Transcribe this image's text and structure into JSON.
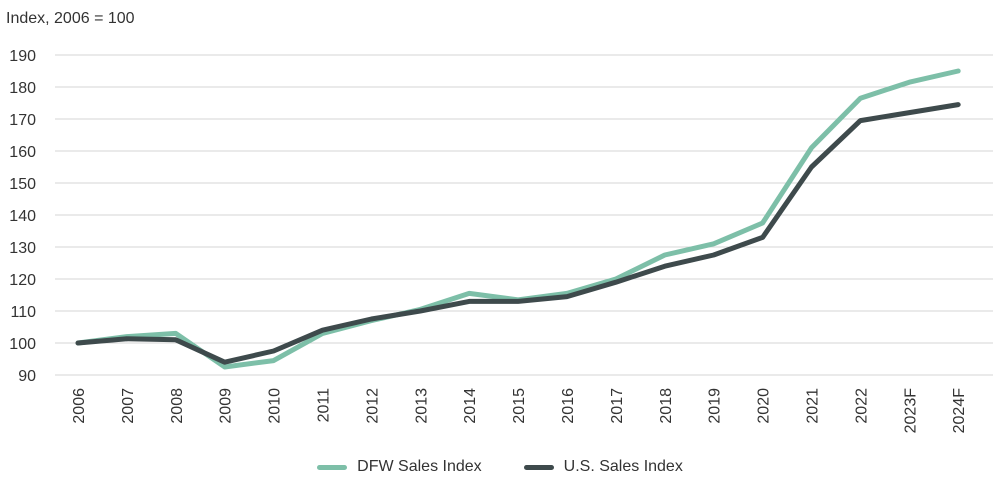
{
  "chart_data": {
    "type": "line",
    "ylabel": "Index, 2006 = 100",
    "ylim": [
      90,
      190
    ],
    "yticks": [
      90,
      100,
      110,
      120,
      130,
      140,
      150,
      160,
      170,
      180,
      190
    ],
    "grid": true,
    "categories": [
      "2006",
      "2007",
      "2008",
      "2009",
      "2010",
      "2011",
      "2012",
      "2013",
      "2014",
      "2015",
      "2016",
      "2017",
      "2018",
      "2019",
      "2020",
      "2021",
      "2022",
      "2023F",
      "2024F"
    ],
    "series": [
      {
        "name": "DFW Sales Index",
        "color": "#7dbfa8",
        "values": [
          100,
          102,
          103,
          92.5,
          94.5,
          103,
          107,
          110.5,
          115.5,
          113.5,
          115.5,
          120,
          127.5,
          131,
          137.5,
          161,
          176.5,
          181.5,
          185
        ]
      },
      {
        "name": "U.S. Sales Index",
        "color": "#3e4a4c",
        "values": [
          100,
          101.3,
          101,
          94,
          97.5,
          104,
          107.5,
          110,
          113,
          113,
          114.5,
          119,
          124,
          127.5,
          133,
          155,
          169.5,
          172,
          174.5
        ]
      }
    ],
    "legend_position": "bottom-center"
  }
}
